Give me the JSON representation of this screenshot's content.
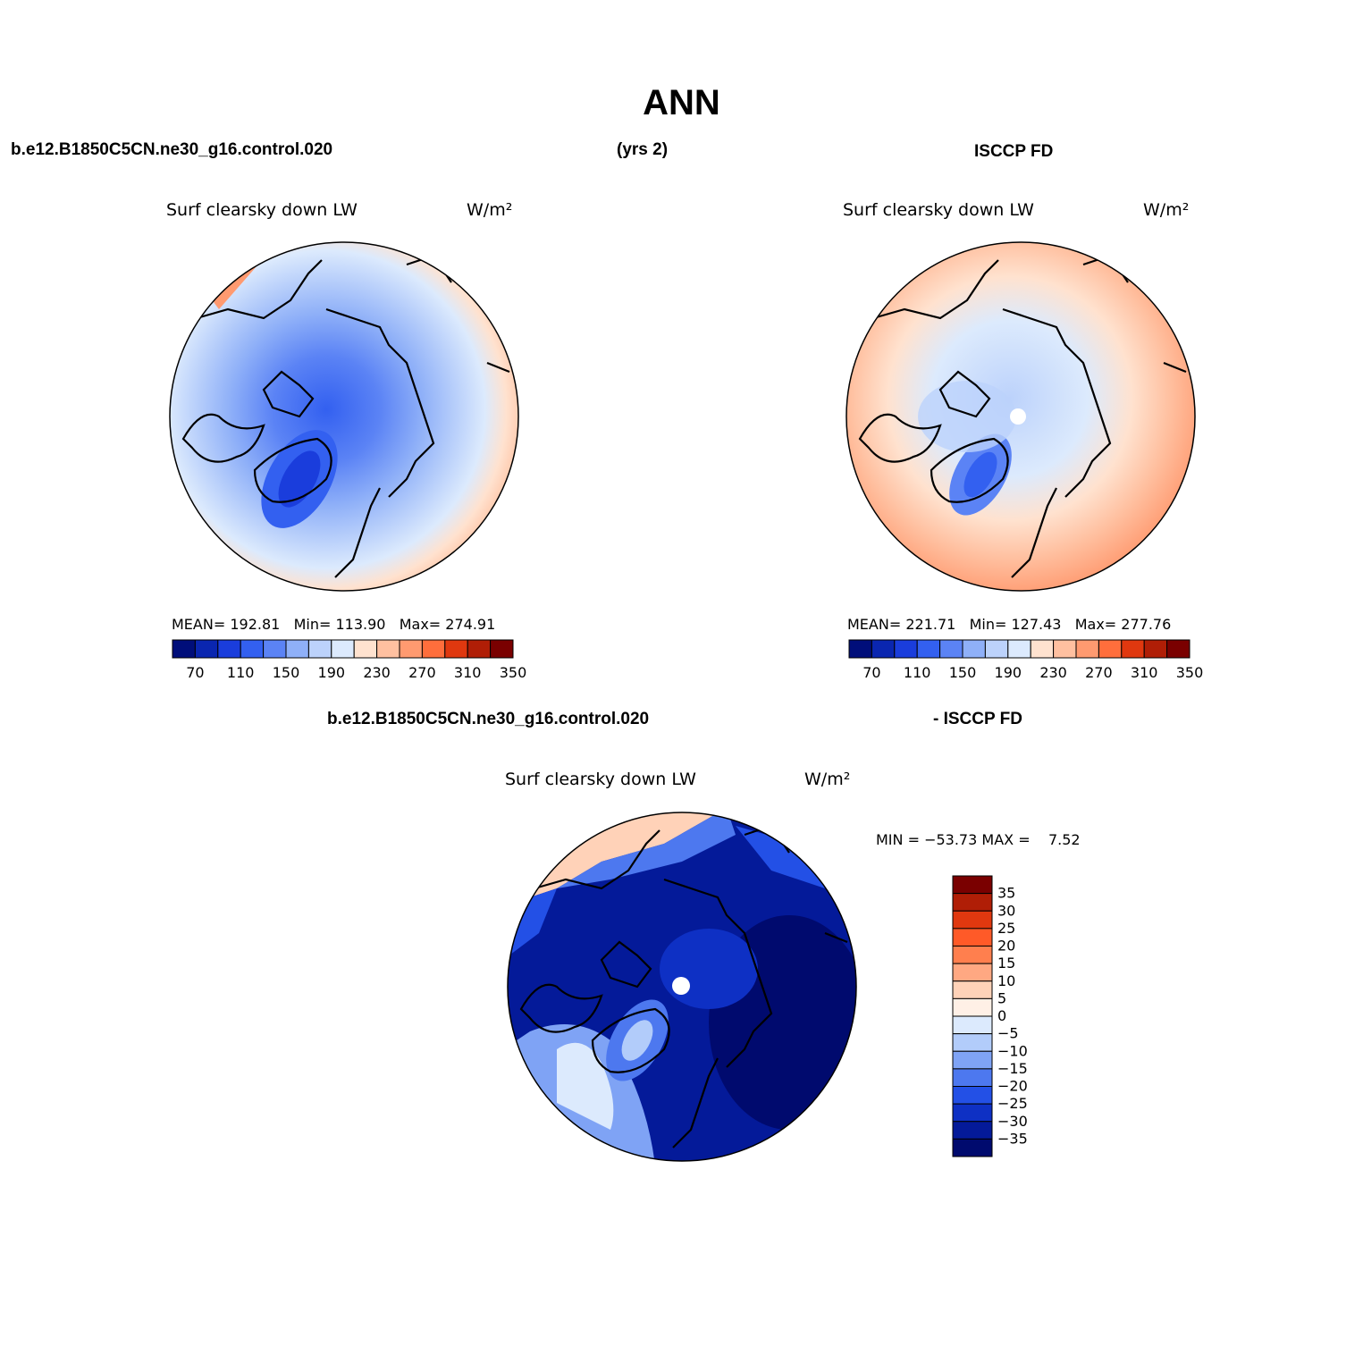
{
  "title": "ANN",
  "header": {
    "case_name": "b.e12.B1850C5CN.ne30_g16.control.020",
    "years": "(yrs 2)",
    "obs_name": "ISCCP FD"
  },
  "panels": [
    {
      "variable": "Surf clearsky down LW",
      "units": "W/m²",
      "stats": {
        "mean_label": "MEAN=",
        "mean": "192.81",
        "min_label": "Min=",
        "min": "113.90",
        "max_label": "Max=",
        "max": "274.91"
      }
    },
    {
      "variable": "Surf clearsky down LW",
      "units": "W/m²",
      "stats": {
        "mean_label": "MEAN=",
        "mean": "221.71",
        "min_label": "Min=",
        "min": "127.43",
        "max_label": "Max=",
        "max": "277.76"
      }
    }
  ],
  "abs_colorbar": {
    "colors": [
      "#000e7a",
      "#0a26b0",
      "#1a3ddc",
      "#3360f0",
      "#5b83f5",
      "#8fb0f8",
      "#bcd2fb",
      "#dceafd",
      "#ffe2cf",
      "#ffc0a0",
      "#ff9a70",
      "#ff6e3c",
      "#e0380f",
      "#b01e06",
      "#7a0000"
    ],
    "tick_labels": [
      "70",
      "110",
      "150",
      "190",
      "230",
      "270",
      "310",
      "350"
    ]
  },
  "diff_header": {
    "case_name": "b.e12.B1850C5CN.ne30_g16.control.020",
    "obs_suffix": "- ISCCP FD"
  },
  "diff_panel": {
    "variable": "Surf clearsky down LW",
    "units": "W/m²",
    "min_label": "MIN =",
    "min": "−53.73",
    "max_label": "MAX =",
    "max": "7.52"
  },
  "diff_colorbar": {
    "colors": [
      "#7a0000",
      "#b01e06",
      "#e0380f",
      "#ff5a28",
      "#ff7f4e",
      "#ffa882",
      "#ffd2b8",
      "#fff0e6",
      "#dceafd",
      "#b2ccfa",
      "#7fa3f5",
      "#4d78ef",
      "#2350e6",
      "#0e30c4",
      "#041a99",
      "#000a6e"
    ],
    "tick_labels": [
      "35",
      "30",
      "25",
      "20",
      "15",
      "10",
      "5",
      "0",
      "−5",
      "−10",
      "−15",
      "−20",
      "−25",
      "−30",
      "−35"
    ]
  },
  "map_colors": {
    "land_outline": "#000000",
    "missing_pole": "#ffffff"
  }
}
